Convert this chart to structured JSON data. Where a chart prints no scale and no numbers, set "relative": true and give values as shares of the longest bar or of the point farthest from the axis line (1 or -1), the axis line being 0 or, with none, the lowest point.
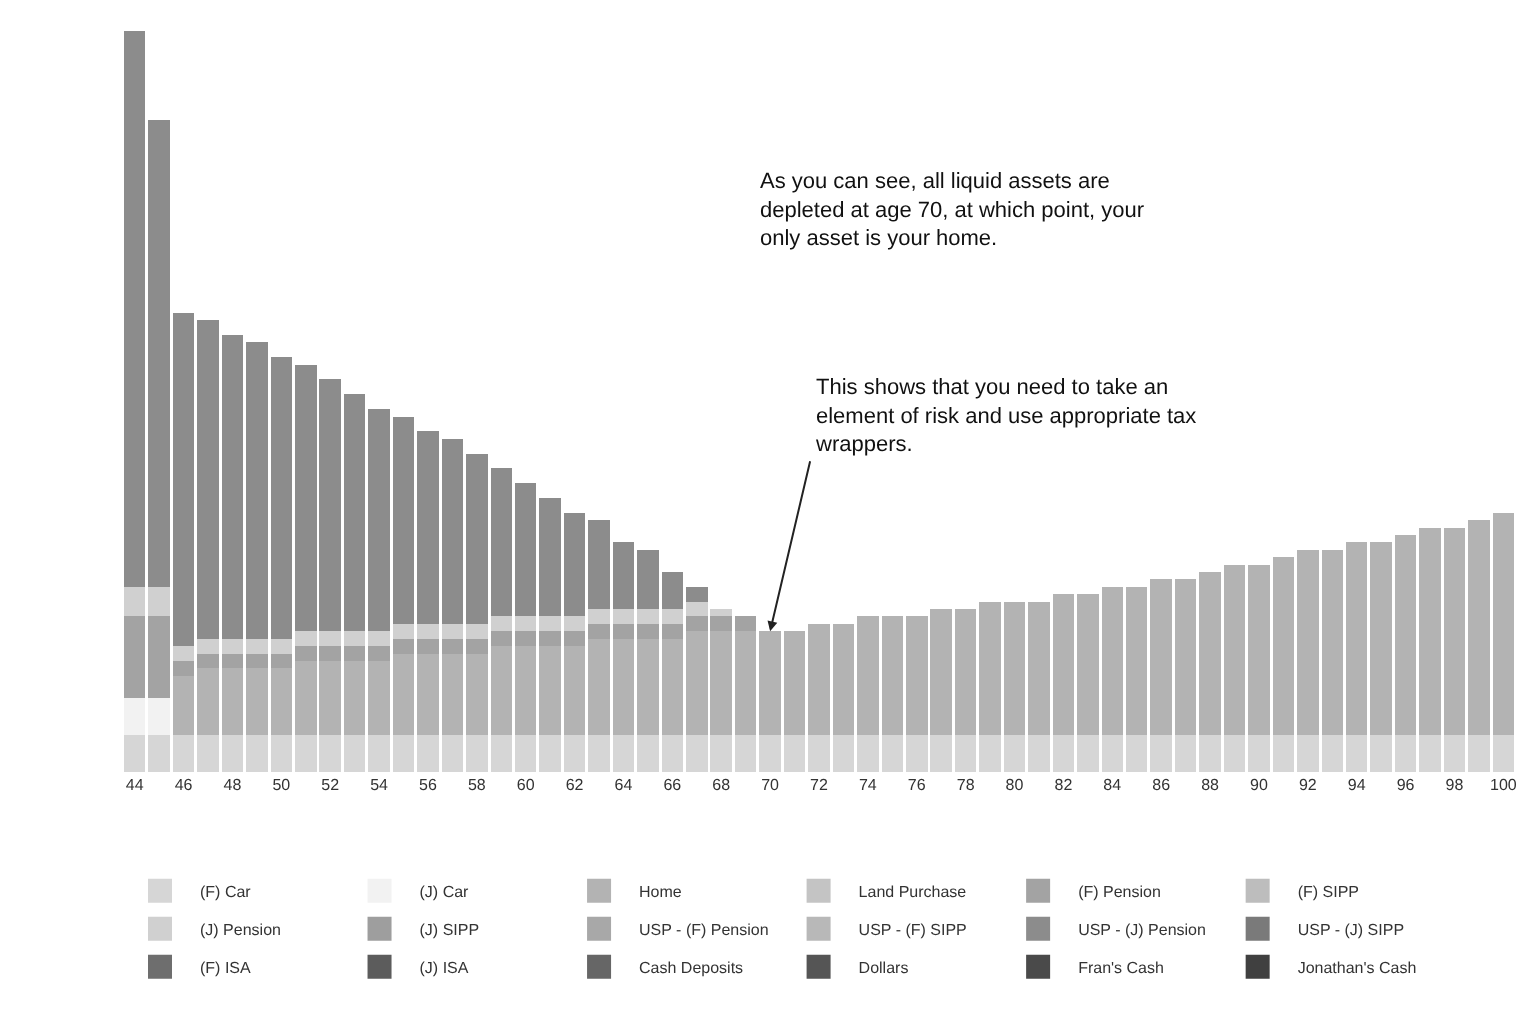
{
  "chart_data": {
    "type": "bar",
    "stacked": true,
    "relative": true,
    "legend": "bottom",
    "categories": [
      "44",
      null,
      "46",
      null,
      "48",
      null,
      "50",
      null,
      "52",
      null,
      "54",
      null,
      "56",
      null,
      "58",
      null,
      "60",
      null,
      "62",
      null,
      "64",
      null,
      "66",
      null,
      "68",
      null,
      "70",
      null,
      "72",
      null,
      "74",
      null,
      "76",
      null,
      "78",
      null,
      "80",
      null,
      "82",
      null,
      "84",
      null,
      "86",
      null,
      "88",
      null,
      "90",
      null,
      "92",
      null,
      "94",
      null,
      "96",
      null,
      "98",
      null,
      "100"
    ],
    "series": [
      {
        "name": "(F) Car",
        "color": "#d6d6d6",
        "values": [
          0.05,
          0.05,
          0.05,
          0.05,
          0.05,
          0.05,
          0.05,
          0.05,
          0.05,
          0.05,
          0.05,
          0.05,
          0.05,
          0.05,
          0.05,
          0.05,
          0.05,
          0.05,
          0.05,
          0.05,
          0.05,
          0.05,
          0.05,
          0.05,
          0.05,
          0.05,
          0.05,
          0.05,
          0.05,
          0.05,
          0.05,
          0.05,
          0.05,
          0.05,
          0.05,
          0.05,
          0.05,
          0.05,
          0.05,
          0.05,
          0.05,
          0.05,
          0.05,
          0.05,
          0.05,
          0.05,
          0.05,
          0.05,
          0.05,
          0.05,
          0.05,
          0.05,
          0.05,
          0.05,
          0.05,
          0.05,
          0.05
        ]
      },
      {
        "name": "(J) Car",
        "color": "#f2f2f2",
        "values": [
          0.05,
          0.05,
          null,
          null,
          null,
          null,
          null,
          null,
          null,
          null,
          null,
          null,
          null,
          null,
          null,
          null,
          null,
          null,
          null,
          null,
          null,
          null,
          null,
          null,
          null,
          null,
          null,
          null,
          null,
          null,
          null,
          null,
          null,
          null,
          null,
          null,
          null,
          null,
          null,
          null,
          null,
          null,
          null,
          null,
          null,
          null,
          null,
          null,
          null,
          null,
          null,
          null,
          null,
          null,
          null,
          null,
          null
        ]
      },
      {
        "name": "Home",
        "color": "#b3b3b3",
        "values": [
          null,
          null,
          0.08,
          0.09,
          0.09,
          0.09,
          0.09,
          0.1,
          0.1,
          0.1,
          0.1,
          0.11,
          0.11,
          0.11,
          0.11,
          0.12,
          0.12,
          0.12,
          0.12,
          0.13,
          0.13,
          0.13,
          0.13,
          0.14,
          0.14,
          0.14,
          0.14,
          0.14,
          0.15,
          0.15,
          0.16,
          0.16,
          0.16,
          0.17,
          0.17,
          0.18,
          0.18,
          0.18,
          0.19,
          0.19,
          0.2,
          0.2,
          0.21,
          0.21,
          0.22,
          0.23,
          0.23,
          0.24,
          0.25,
          0.25,
          0.26,
          0.26,
          0.27,
          0.28,
          0.28,
          0.29,
          0.3
        ]
      },
      {
        "name": "Land Purchase",
        "color": "#c4c4c4",
        "values": [
          null,
          null,
          null,
          null,
          null,
          null,
          null,
          null,
          null,
          null,
          null,
          null,
          null,
          null,
          null,
          null,
          null,
          null,
          null,
          null,
          null,
          null,
          null,
          null,
          null,
          null,
          null,
          null,
          null,
          null,
          null,
          null,
          null,
          null,
          null,
          null,
          null,
          null,
          null,
          null,
          null,
          null,
          null,
          null,
          null,
          null,
          null,
          null,
          null,
          null,
          null,
          null,
          null,
          null,
          null,
          null,
          null
        ]
      },
      {
        "name": "(F) Pension",
        "color": "#a3a3a3",
        "values": [
          0.11,
          0.11,
          0.02,
          0.02,
          0.02,
          0.02,
          0.02,
          0.02,
          0.02,
          0.02,
          0.02,
          0.02,
          0.02,
          0.02,
          0.02,
          0.02,
          0.02,
          0.02,
          0.02,
          0.02,
          0.02,
          0.02,
          0.02,
          0.02,
          0.02,
          0.02,
          null,
          null,
          null,
          null,
          null,
          null,
          null,
          null,
          null,
          null,
          null,
          null,
          null,
          null,
          null,
          null,
          null,
          null,
          null,
          null,
          null,
          null,
          null,
          null,
          null,
          null,
          null,
          null,
          null,
          null,
          null
        ]
      },
      {
        "name": "(F) SIPP",
        "color": "#bdbdbd",
        "values": [
          null,
          null,
          null,
          null,
          null,
          null,
          null,
          null,
          null,
          null,
          null,
          null,
          null,
          null,
          null,
          null,
          null,
          null,
          null,
          null,
          null,
          null,
          null,
          null,
          null,
          null,
          null,
          null,
          null,
          null,
          null,
          null,
          null,
          null,
          null,
          null,
          null,
          null,
          null,
          null,
          null,
          null,
          null,
          null,
          null,
          null,
          null,
          null,
          null,
          null,
          null,
          null,
          null,
          null,
          null,
          null,
          null
        ]
      },
      {
        "name": "(J) Pension",
        "color": "#d0d0d0",
        "values": [
          0.04,
          0.04,
          0.02,
          0.02,
          0.02,
          0.02,
          0.02,
          0.02,
          0.02,
          0.02,
          0.02,
          0.02,
          0.02,
          0.02,
          0.02,
          0.02,
          0.02,
          0.02,
          0.02,
          0.02,
          0.02,
          0.02,
          0.02,
          0.02,
          0.01,
          null,
          null,
          null,
          null,
          null,
          null,
          null,
          null,
          null,
          null,
          null,
          null,
          null,
          null,
          null,
          null,
          null,
          null,
          null,
          null,
          null,
          null,
          null,
          null,
          null,
          null,
          null,
          null,
          null,
          null,
          null,
          null
        ]
      },
      {
        "name": "(J) SIPP",
        "color": "#9e9e9e",
        "values": [
          null,
          null,
          null,
          null,
          null,
          null,
          null,
          null,
          null,
          null,
          null,
          null,
          null,
          null,
          null,
          null,
          null,
          null,
          null,
          null,
          null,
          null,
          null,
          null,
          null,
          null,
          null,
          null,
          null,
          null,
          null,
          null,
          null,
          null,
          null,
          null,
          null,
          null,
          null,
          null,
          null,
          null,
          null,
          null,
          null,
          null,
          null,
          null,
          null,
          null,
          null,
          null,
          null,
          null,
          null,
          null,
          null
        ]
      },
      {
        "name": "USP - (F) Pension",
        "color": "#a8a8a8",
        "values": [
          null,
          null,
          null,
          null,
          null,
          null,
          null,
          null,
          null,
          null,
          null,
          null,
          null,
          null,
          null,
          null,
          null,
          null,
          null,
          null,
          null,
          null,
          null,
          null,
          null,
          null,
          null,
          null,
          null,
          null,
          null,
          null,
          null,
          null,
          null,
          null,
          null,
          null,
          null,
          null,
          null,
          null,
          null,
          null,
          null,
          null,
          null,
          null,
          null,
          null,
          null,
          null,
          null,
          null,
          null,
          null,
          null
        ]
      },
      {
        "name": "USP - (F) SIPP",
        "color": "#b8b8b8",
        "values": [
          null,
          null,
          null,
          null,
          null,
          null,
          null,
          null,
          null,
          null,
          null,
          null,
          null,
          null,
          null,
          null,
          null,
          null,
          null,
          null,
          null,
          null,
          null,
          null,
          null,
          null,
          null,
          null,
          null,
          null,
          null,
          null,
          null,
          null,
          null,
          null,
          null,
          null,
          null,
          null,
          null,
          null,
          null,
          null,
          null,
          null,
          null,
          null,
          null,
          null,
          null,
          null,
          null,
          null,
          null,
          null,
          null
        ]
      },
      {
        "name": "USP - (J) Pension",
        "color": "#8c8c8c",
        "values": [
          0.75,
          0.63,
          0.45,
          0.43,
          0.41,
          0.4,
          0.38,
          0.36,
          0.34,
          0.32,
          0.3,
          0.28,
          0.26,
          0.25,
          0.23,
          0.2,
          0.18,
          0.16,
          0.14,
          0.12,
          0.09,
          0.08,
          0.05,
          0.02,
          null,
          null,
          null,
          null,
          null,
          null,
          null,
          null,
          null,
          null,
          null,
          null,
          null,
          null,
          null,
          null,
          null,
          null,
          null,
          null,
          null,
          null,
          null,
          null,
          null,
          null,
          null,
          null,
          null,
          null,
          null,
          null,
          null
        ]
      },
      {
        "name": "USP - (J) SIPP",
        "color": "#7a7a7a",
        "values": [
          null,
          null,
          null,
          null,
          null,
          null,
          null,
          null,
          null,
          null,
          null,
          null,
          null,
          null,
          null,
          null,
          null,
          null,
          null,
          null,
          null,
          null,
          null,
          null,
          null,
          null,
          null,
          null,
          null,
          null,
          null,
          null,
          null,
          null,
          null,
          null,
          null,
          null,
          null,
          null,
          null,
          null,
          null,
          null,
          null,
          null,
          null,
          null,
          null,
          null,
          null,
          null,
          null,
          null,
          null,
          null,
          null
        ]
      },
      {
        "name": "(F) ISA",
        "color": "#6e6e6e",
        "values": [
          null,
          null,
          null,
          null,
          null,
          null,
          null,
          null,
          null,
          null,
          null,
          null,
          null,
          null,
          null,
          null,
          null,
          null,
          null,
          null,
          null,
          null,
          null,
          null,
          null,
          null,
          null,
          null,
          null,
          null,
          null,
          null,
          null,
          null,
          null,
          null,
          null,
          null,
          null,
          null,
          null,
          null,
          null,
          null,
          null,
          null,
          null,
          null,
          null,
          null,
          null,
          null,
          null,
          null,
          null,
          null,
          null
        ]
      },
      {
        "name": "(J) ISA",
        "color": "#5c5c5c",
        "values": [
          null,
          null,
          null,
          null,
          null,
          null,
          null,
          null,
          null,
          null,
          null,
          null,
          null,
          null,
          null,
          null,
          null,
          null,
          null,
          null,
          null,
          null,
          null,
          null,
          null,
          null,
          null,
          null,
          null,
          null,
          null,
          null,
          null,
          null,
          null,
          null,
          null,
          null,
          null,
          null,
          null,
          null,
          null,
          null,
          null,
          null,
          null,
          null,
          null,
          null,
          null,
          null,
          null,
          null,
          null,
          null,
          null
        ]
      },
      {
        "name": "Cash Deposits",
        "color": "#666666",
        "values": [
          null,
          null,
          null,
          null,
          null,
          null,
          null,
          null,
          null,
          null,
          null,
          null,
          null,
          null,
          null,
          null,
          null,
          null,
          null,
          null,
          null,
          null,
          null,
          null,
          null,
          null,
          null,
          null,
          null,
          null,
          null,
          null,
          null,
          null,
          null,
          null,
          null,
          null,
          null,
          null,
          null,
          null,
          null,
          null,
          null,
          null,
          null,
          null,
          null,
          null,
          null,
          null,
          null,
          null,
          null,
          null,
          null
        ]
      },
      {
        "name": "Dollars",
        "color": "#555555",
        "values": [
          null,
          null,
          null,
          null,
          null,
          null,
          null,
          null,
          null,
          null,
          null,
          null,
          null,
          null,
          null,
          null,
          null,
          null,
          null,
          null,
          null,
          null,
          null,
          null,
          null,
          null,
          null,
          null,
          null,
          null,
          null,
          null,
          null,
          null,
          null,
          null,
          null,
          null,
          null,
          null,
          null,
          null,
          null,
          null,
          null,
          null,
          null,
          null,
          null,
          null,
          null,
          null,
          null,
          null,
          null,
          null,
          null
        ]
      },
      {
        "name": "Fran's Cash",
        "color": "#4a4a4a",
        "values": [
          null,
          null,
          null,
          null,
          null,
          null,
          null,
          null,
          null,
          null,
          null,
          null,
          null,
          null,
          null,
          null,
          null,
          null,
          null,
          null,
          null,
          null,
          null,
          null,
          null,
          null,
          null,
          null,
          null,
          null,
          null,
          null,
          null,
          null,
          null,
          null,
          null,
          null,
          null,
          null,
          null,
          null,
          null,
          null,
          null,
          null,
          null,
          null,
          null,
          null,
          null,
          null,
          null,
          null,
          null,
          null,
          null
        ]
      },
      {
        "name": "Jonathan's Cash",
        "color": "#404040",
        "values": [
          null,
          null,
          null,
          null,
          null,
          null,
          null,
          null,
          null,
          null,
          null,
          null,
          null,
          null,
          null,
          null,
          null,
          null,
          null,
          null,
          null,
          null,
          null,
          null,
          null,
          null,
          null,
          null,
          null,
          null,
          null,
          null,
          null,
          null,
          null,
          null,
          null,
          null,
          null,
          null,
          null,
          null,
          null,
          null,
          null,
          null,
          null,
          null,
          null,
          null,
          null,
          null,
          null,
          null,
          null,
          null,
          null
        ]
      }
    ],
    "annotations": [
      "As you can see, all liquid assets are\ndepleted at age 70, at which point, your\nonly asset is your home.",
      {
        "text": "This shows that you need to take an\nelement of risk and use appropriate tax\nwrappers.",
        "x": "70",
        "y": 0.19
      }
    ]
  }
}
